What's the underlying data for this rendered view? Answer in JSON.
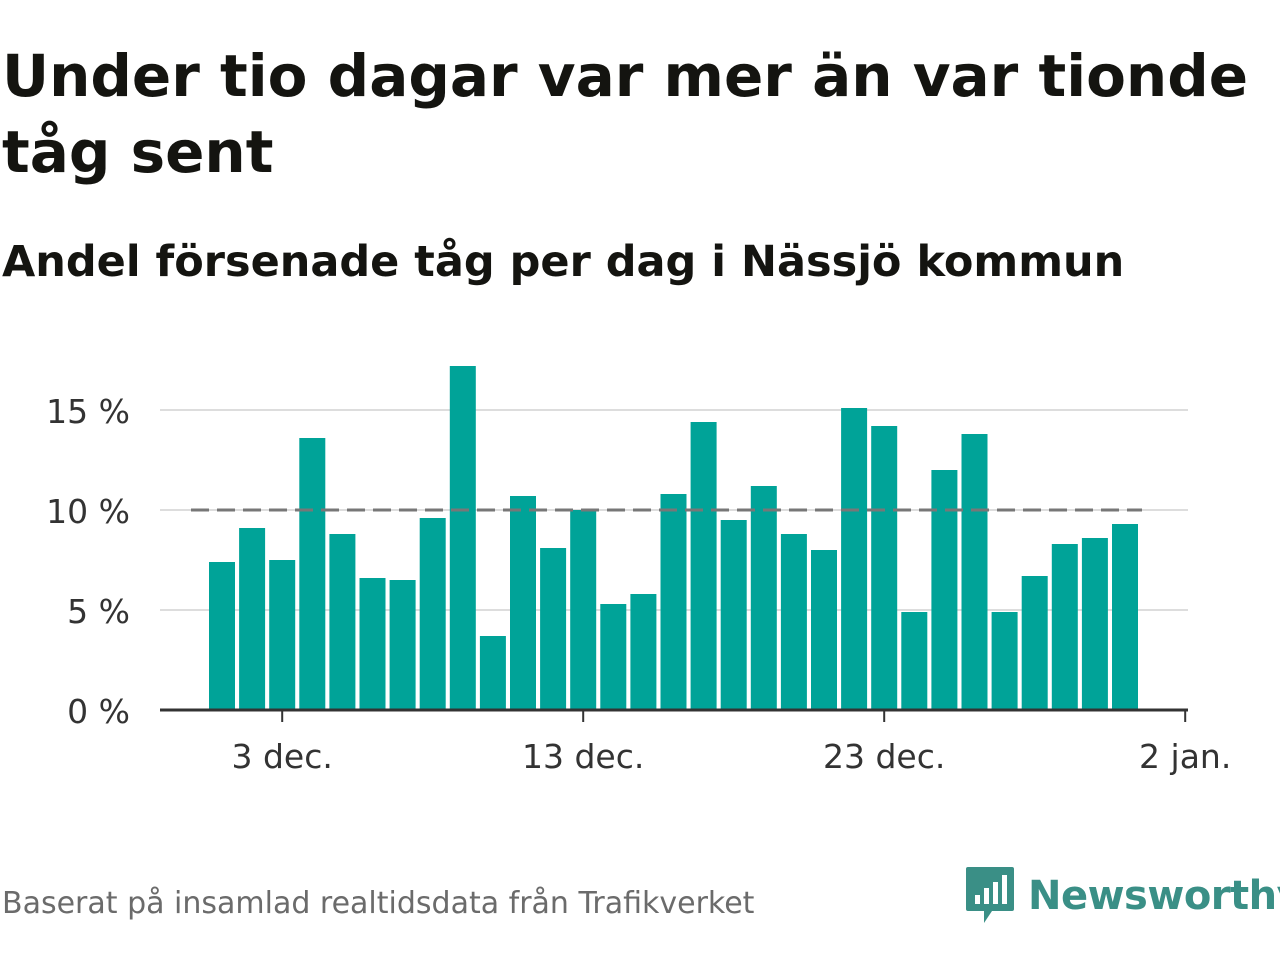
{
  "header": {
    "title": "Under tio dagar var mer än var tionde tåg sent",
    "subtitle": "Andel försenade tåg per dag i Nässjö kommun"
  },
  "footer": {
    "source": "Baserat på insamlad realtidsdata från Trafikverket",
    "brand": "Newsworthy"
  },
  "colors": {
    "bar": "#00a398",
    "reference_line": "#777777",
    "grid": "#dddddd",
    "axis": "#333333",
    "brand": "#3a8f86"
  },
  "chart_data": {
    "type": "bar",
    "x": [
      "2023-12-01",
      "2023-12-02",
      "2023-12-03",
      "2023-12-04",
      "2023-12-05",
      "2023-12-06",
      "2023-12-07",
      "2023-12-08",
      "2023-12-09",
      "2023-12-10",
      "2023-12-11",
      "2023-12-12",
      "2023-12-13",
      "2023-12-14",
      "2023-12-15",
      "2023-12-16",
      "2023-12-17",
      "2023-12-18",
      "2023-12-19",
      "2023-12-20",
      "2023-12-21",
      "2023-12-22",
      "2023-12-23",
      "2023-12-24",
      "2023-12-25",
      "2023-12-26",
      "2023-12-27",
      "2023-12-28",
      "2023-12-29",
      "2023-12-30",
      "2023-12-31"
    ],
    "values": [
      7.4,
      9.1,
      7.5,
      13.6,
      8.8,
      6.6,
      6.5,
      9.6,
      17.2,
      3.7,
      10.7,
      8.1,
      10.0,
      5.3,
      5.8,
      10.8,
      14.4,
      9.5,
      11.2,
      8.8,
      8.0,
      15.1,
      14.2,
      4.9,
      12.0,
      13.8,
      4.9,
      6.7,
      8.3,
      8.6,
      9.3
    ],
    "ylim": [
      0,
      17.5
    ],
    "yticks": [
      0,
      5,
      10,
      15
    ],
    "ytick_labels": [
      "0 %",
      "5 %",
      "10 %",
      "15 %"
    ],
    "xticks": [
      "2023-12-03",
      "2023-12-13",
      "2023-12-23",
      "2024-01-02"
    ],
    "xtick_labels": [
      "3 dec.",
      "13 dec.",
      "23 dec.",
      "2 jan."
    ],
    "reference_line": {
      "y": 10,
      "style": "dashed"
    },
    "grid": true,
    "legend": "none"
  }
}
